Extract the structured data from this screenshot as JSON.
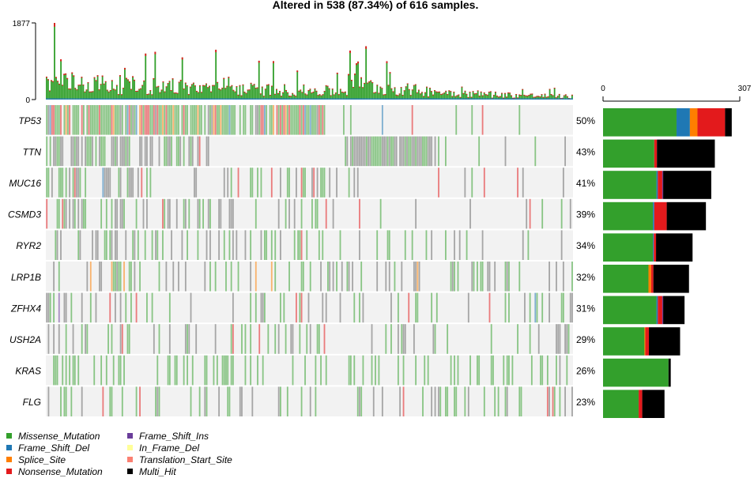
{
  "chart_data": {
    "type": "oncoplot",
    "title": "Altered in 538 (87.34%) of 616 samples.",
    "total_samples": 616,
    "altered_samples": 538,
    "tmb_axis": {
      "min": 0,
      "max": 1877,
      "tick_labels": [
        "1877",
        "0"
      ]
    },
    "gene_axis": {
      "min": 0,
      "max": 307,
      "tick_labels": [
        "0",
        "307"
      ]
    },
    "classes": [
      {
        "name": "Missense_Mutation",
        "color": "#33a02c"
      },
      {
        "name": "Frame_Shift_Del",
        "color": "#1f78b4"
      },
      {
        "name": "Splice_Site",
        "color": "#ff7f00"
      },
      {
        "name": "Nonsense_Mutation",
        "color": "#e31a1c"
      },
      {
        "name": "Frame_Shift_Ins",
        "color": "#6a3d9a"
      },
      {
        "name": "In_Frame_Del",
        "color": "#ffff99"
      },
      {
        "name": "Translation_Start_Site",
        "color": "#fb8072"
      },
      {
        "name": "Multi_Hit",
        "color": "#000000"
      }
    ],
    "genes": [
      {
        "name": "TP53",
        "pct": "50%",
        "counts": {
          "Missense_Mutation": 165,
          "Frame_Shift_Del": 30,
          "Splice_Site": 17,
          "Nonsense_Mutation": 62,
          "Multi_Hit": 15
        }
      },
      {
        "name": "TTN",
        "pct": "43%",
        "counts": {
          "Missense_Mutation": 115,
          "Nonsense_Mutation": 6,
          "Multi_Hit": 130
        }
      },
      {
        "name": "MUC16",
        "pct": "41%",
        "counts": {
          "Missense_Mutation": 120,
          "Frame_Shift_Del": 3,
          "Nonsense_Mutation": 10,
          "Frame_Shift_Ins": 2,
          "Multi_Hit": 108
        }
      },
      {
        "name": "CSMD3",
        "pct": "39%",
        "counts": {
          "Missense_Mutation": 112,
          "Frame_Shift_Del": 3,
          "Nonsense_Mutation": 28,
          "Multi_Hit": 88
        }
      },
      {
        "name": "RYR2",
        "pct": "34%",
        "counts": {
          "Missense_Mutation": 112,
          "Frame_Shift_Del": 2,
          "Nonsense_Mutation": 5,
          "Multi_Hit": 82
        }
      },
      {
        "name": "LRP1B",
        "pct": "32%",
        "counts": {
          "Missense_Mutation": 102,
          "Splice_Site": 6,
          "Nonsense_Mutation": 5,
          "Multi_Hit": 80
        }
      },
      {
        "name": "ZFHX4",
        "pct": "31%",
        "counts": {
          "Missense_Mutation": 120,
          "Frame_Shift_Del": 3,
          "Nonsense_Mutation": 10,
          "Frame_Shift_Ins": 2,
          "Multi_Hit": 48
        }
      },
      {
        "name": "USH2A",
        "pct": "29%",
        "counts": {
          "Missense_Mutation": 93,
          "Splice_Site": 2,
          "Nonsense_Mutation": 8,
          "Multi_Hit": 70
        }
      },
      {
        "name": "KRAS",
        "pct": "26%",
        "counts": {
          "Missense_Mutation": 147,
          "Multi_Hit": 5
        }
      },
      {
        "name": "FLG",
        "pct": "23%",
        "counts": {
          "Missense_Mutation": 80,
          "Nonsense_Mutation": 8,
          "Multi_Hit": 50
        }
      }
    ]
  }
}
